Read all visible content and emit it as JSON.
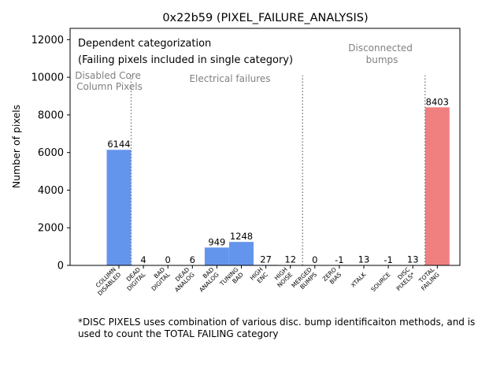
{
  "chart_data": {
    "type": "bar",
    "title": "0x22b59 (PIXEL_FAILURE_ANALYSIS)",
    "xlabel": "",
    "ylabel": "Number of pixels",
    "ylim": [
      0,
      12600
    ],
    "yticks": [
      0,
      2000,
      4000,
      6000,
      8000,
      10000,
      12000
    ],
    "categories": [
      [
        "COLUMN",
        "DISABLED"
      ],
      [
        "DEAD",
        "DIGITAL"
      ],
      [
        "BAD",
        "DIGITAL"
      ],
      [
        "DEAD",
        "ANALOG"
      ],
      [
        "BAD",
        "ANALOG"
      ],
      [
        "TUNING",
        "BAD"
      ],
      [
        "HIGH",
        "ENC"
      ],
      [
        "HIGH",
        "NOISE"
      ],
      [
        "MERGED",
        "BUMPS"
      ],
      [
        "ZERO",
        "BIAS"
      ],
      [
        "XTALK"
      ],
      [
        "SOURCE"
      ],
      [
        "DISC",
        "PIXELS*"
      ],
      [
        "TOTAL",
        "FAILING"
      ]
    ],
    "values": [
      6144,
      4,
      0,
      6,
      949,
      1248,
      27,
      12,
      0,
      -1,
      13,
      -1,
      13,
      8403
    ],
    "value_labels": [
      "6144",
      "4",
      "0",
      "6",
      "949",
      "1248",
      "27",
      "12",
      "0",
      "-1",
      "13",
      "-1",
      "13",
      "8403"
    ],
    "bar_colors": [
      "#6495ed",
      "#6495ed",
      "#6495ed",
      "#6495ed",
      "#6495ed",
      "#6495ed",
      "#6495ed",
      "#6495ed",
      "#6495ed",
      "#6495ed",
      "#6495ed",
      "#6495ed",
      "#6495ed",
      "#f08080"
    ],
    "separators_after_index": [
      0,
      7,
      12
    ],
    "separator_top_value": 10100,
    "legend_text": [
      "Dependent categorization",
      "(Failing pixels included in single category)"
    ],
    "section_labels": [
      {
        "lines": [
          "Disabled Core",
          "Column Pixels"
        ]
      },
      {
        "lines": [
          "Electrical failures"
        ]
      },
      {
        "lines": [
          "Disconnected",
          "bumps"
        ]
      }
    ]
  },
  "footnote": "*DISC PIXELS uses combination of various disc. bump identificaiton methods, and is used to count the TOTAL FAILING category"
}
